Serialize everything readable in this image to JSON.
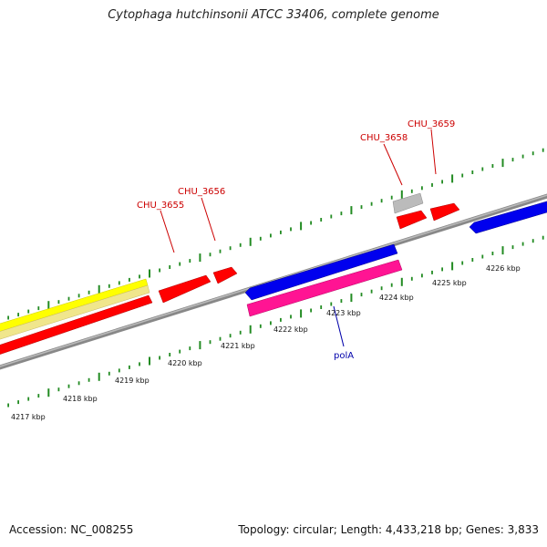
{
  "title": "Cytophaga hutchinsonii ATCC 33406, complete genome",
  "footer": {
    "accession": "Accession: NC_008255",
    "stats": "Topology: circular; Length: 4,433,218 bp; Genes: 3,833"
  },
  "kbp_labels": [
    "4217 kbp",
    "4218 kbp",
    "4219 kbp",
    "4220 kbp",
    "4221 kbp",
    "4222 kbp",
    "4223 kbp",
    "4224 kbp",
    "4225 kbp",
    "4226 kbp"
  ],
  "gene_labels": [
    {
      "text": "CHU_3655",
      "color": "#cc0000"
    },
    {
      "text": "CHU_3656",
      "color": "#cc0000"
    },
    {
      "text": "CHU_3658",
      "color": "#cc0000"
    },
    {
      "text": "CHU_3659",
      "color": "#cc0000"
    },
    {
      "text": "polA",
      "color": "#0000aa"
    }
  ],
  "colors": {
    "backbone": "#888888",
    "ruler": "#228b22",
    "cds_red": "#ff0000",
    "cds_blue": "#0000ee",
    "cds_magenta": "#ff1493",
    "cds_grey": "#bbbbbb",
    "cds_yellow": "#ffff00",
    "cds_tan": "#f0e68c"
  }
}
